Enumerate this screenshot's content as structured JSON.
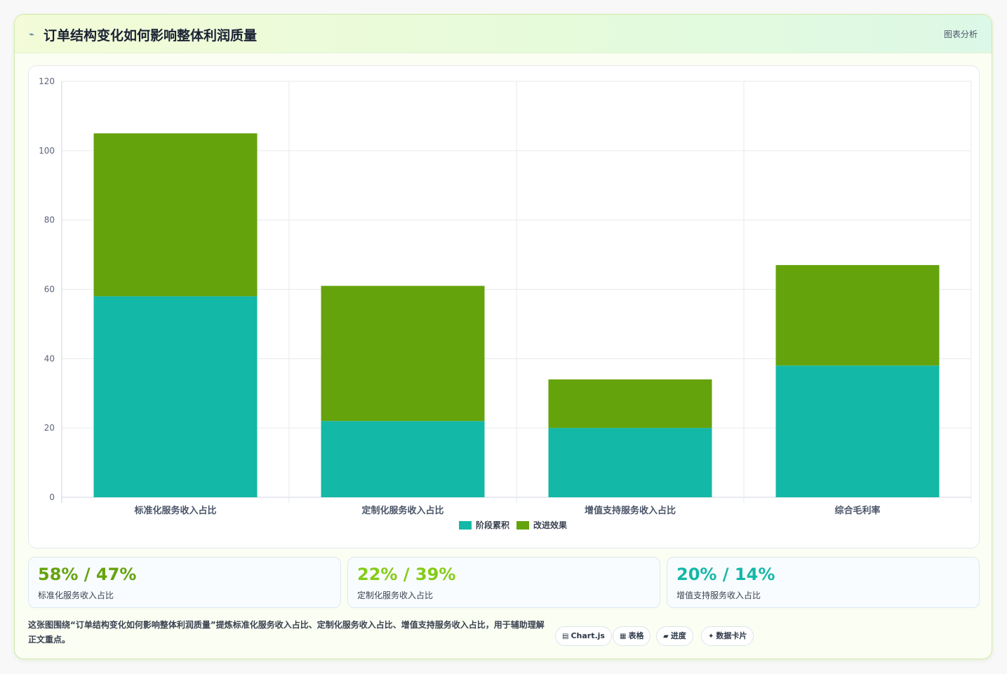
{
  "header": {
    "title": "订单结构变化如何影响整体利润质量",
    "tag": "图表分析",
    "icon": "chart-line-icon"
  },
  "chart_data": {
    "type": "bar",
    "stacked": true,
    "categories": [
      "标准化服务收入占比",
      "定制化服务收入占比",
      "增值支持服务收入占比",
      "综合毛利率"
    ],
    "series": [
      {
        "name": "阶段累积",
        "values": [
          58,
          22,
          20,
          38
        ],
        "color": "#14b8a6"
      },
      {
        "name": "改进效果",
        "values": [
          47,
          39,
          14,
          29
        ],
        "color": "#65a30d"
      }
    ],
    "ylim": [
      0,
      120
    ],
    "yticks": [
      0,
      20,
      40,
      60,
      80,
      100,
      120
    ],
    "grid": true,
    "legend": "bottom"
  },
  "stats": [
    {
      "value": "58% / 47%",
      "label": "标准化服务收入占比",
      "color": "#65a30d"
    },
    {
      "value": "22% / 39%",
      "label": "定制化服务收入占比",
      "color": "#84cc16"
    },
    {
      "value": "20% / 14%",
      "label": "增值支持服务收入占比",
      "color": "#14b8a6"
    }
  ],
  "note": "这张图围绕“订单结构变化如何影响整体利润质量”提炼标准化服务收入占比、定制化服务收入占比、增值支持服务收入占比，用于辅助理解正文重点。",
  "pills": [
    {
      "icon": "▤",
      "label": "Chart.js"
    },
    {
      "icon": "▦",
      "label": "表格"
    },
    {
      "icon": "▰",
      "label": "进度"
    },
    {
      "icon": "✦",
      "label": "数据卡片"
    }
  ]
}
